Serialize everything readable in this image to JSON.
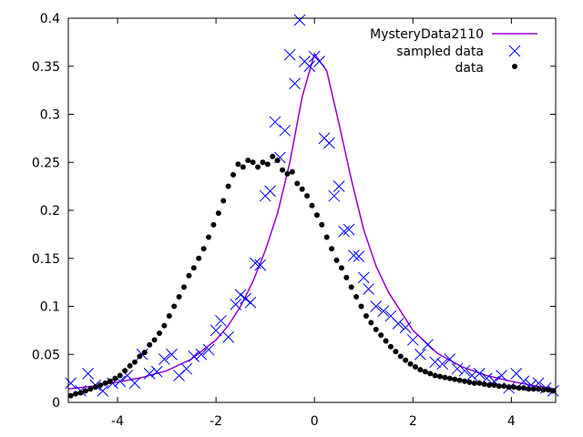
{
  "chart_data": {
    "type": "scatter",
    "xlim": [
      -5,
      4.9
    ],
    "ylim": [
      0,
      0.4
    ],
    "xticks": [
      -4,
      -2,
      0,
      2,
      4
    ],
    "yticks": [
      0,
      0.05,
      0.1,
      0.15,
      0.2,
      0.25,
      0.3,
      0.35,
      0.4
    ],
    "xtick_labels": [
      "-4",
      "-2",
      "0",
      "2",
      "4"
    ],
    "ytick_labels": [
      "0",
      "0.05",
      "0.1",
      "0.15",
      "0.2",
      "0.25",
      "0.3",
      "0.35",
      "0.4"
    ],
    "grid": false,
    "legend_position": "top-right",
    "series": [
      {
        "name": "MysteryData2110",
        "style": "line",
        "color": "#9400d3",
        "x": [
          -5,
          -4.5,
          -4,
          -3.5,
          -3,
          -2.5,
          -2,
          -1.75,
          -1.5,
          -1.25,
          -1,
          -0.75,
          -0.5,
          -0.25,
          0,
          0.25,
          0.5,
          0.75,
          1,
          1.25,
          1.5,
          2,
          2.5,
          3,
          3.5,
          4,
          4.5,
          4.9
        ],
        "y": [
          0.014,
          0.017,
          0.021,
          0.026,
          0.033,
          0.045,
          0.065,
          0.08,
          0.1,
          0.126,
          0.158,
          0.197,
          0.25,
          0.318,
          0.363,
          0.345,
          0.29,
          0.232,
          0.18,
          0.142,
          0.115,
          0.075,
          0.051,
          0.037,
          0.028,
          0.022,
          0.017,
          0.014
        ]
      },
      {
        "name": "sampled data",
        "style": "cross",
        "color": "#0000ff",
        "x": [
          -4.95,
          -4.75,
          -4.6,
          -4.45,
          -4.3,
          -4.1,
          -3.95,
          -3.8,
          -3.65,
          -3.5,
          -3.35,
          -3.2,
          -3.05,
          -2.9,
          -2.75,
          -2.6,
          -2.45,
          -2.3,
          -2.15,
          -2.0,
          -1.9,
          -1.75,
          -1.6,
          -1.5,
          -1.4,
          -1.3,
          -1.2,
          -1.1,
          -1.0,
          -0.9,
          -0.8,
          -0.7,
          -0.6,
          -0.5,
          -0.4,
          -0.3,
          -0.2,
          -0.1,
          0.0,
          0.1,
          0.2,
          0.3,
          0.4,
          0.5,
          0.6,
          0.7,
          0.8,
          0.9,
          1.0,
          1.1,
          1.25,
          1.4,
          1.55,
          1.7,
          1.85,
          2.0,
          2.15,
          2.3,
          2.45,
          2.6,
          2.75,
          2.9,
          3.05,
          3.2,
          3.35,
          3.5,
          3.65,
          3.8,
          3.95,
          4.1,
          4.25,
          4.4,
          4.55,
          4.7,
          4.85
        ],
        "y": [
          0.02,
          0.012,
          0.03,
          0.018,
          0.012,
          0.02,
          0.022,
          0.028,
          0.02,
          0.05,
          0.03,
          0.032,
          0.045,
          0.05,
          0.028,
          0.035,
          0.048,
          0.05,
          0.055,
          0.075,
          0.085,
          0.068,
          0.102,
          0.112,
          0.108,
          0.104,
          0.145,
          0.143,
          0.215,
          0.22,
          0.292,
          0.255,
          0.283,
          0.362,
          0.332,
          0.398,
          0.355,
          0.35,
          0.36,
          0.355,
          0.275,
          0.27,
          0.215,
          0.225,
          0.178,
          0.18,
          0.153,
          0.152,
          0.13,
          0.118,
          0.1,
          0.095,
          0.09,
          0.082,
          0.078,
          0.065,
          0.05,
          0.06,
          0.042,
          0.04,
          0.045,
          0.035,
          0.033,
          0.028,
          0.03,
          0.025,
          0.022,
          0.028,
          0.015,
          0.03,
          0.022,
          0.018,
          0.02,
          0.015,
          0.012
        ]
      },
      {
        "name": "data",
        "style": "dot",
        "color": "#000000",
        "x": [
          -4.95,
          -4.85,
          -4.75,
          -4.65,
          -4.55,
          -4.45,
          -4.35,
          -4.25,
          -4.15,
          -4.05,
          -3.95,
          -3.85,
          -3.75,
          -3.65,
          -3.55,
          -3.45,
          -3.35,
          -3.25,
          -3.15,
          -3.05,
          -2.95,
          -2.85,
          -2.75,
          -2.65,
          -2.55,
          -2.45,
          -2.35,
          -2.25,
          -2.15,
          -2.05,
          -1.95,
          -1.85,
          -1.75,
          -1.65,
          -1.55,
          -1.45,
          -1.35,
          -1.25,
          -1.15,
          -1.05,
          -0.95,
          -0.85,
          -0.75,
          -0.65,
          -0.55,
          -0.45,
          -0.35,
          -0.25,
          -0.15,
          -0.05,
          0.05,
          0.15,
          0.25,
          0.35,
          0.45,
          0.55,
          0.65,
          0.75,
          0.85,
          0.95,
          1.05,
          1.15,
          1.25,
          1.35,
          1.45,
          1.55,
          1.65,
          1.75,
          1.85,
          1.95,
          2.05,
          2.15,
          2.25,
          2.35,
          2.45,
          2.55,
          2.65,
          2.75,
          2.85,
          2.95,
          3.05,
          3.15,
          3.25,
          3.35,
          3.45,
          3.55,
          3.65,
          3.75,
          3.85,
          3.95,
          4.05,
          4.15,
          4.25,
          4.35,
          4.45,
          4.55,
          4.65,
          4.75,
          4.85
        ],
        "y": [
          0.007,
          0.009,
          0.01,
          0.012,
          0.014,
          0.016,
          0.018,
          0.02,
          0.022,
          0.025,
          0.028,
          0.033,
          0.038,
          0.042,
          0.048,
          0.052,
          0.06,
          0.065,
          0.072,
          0.08,
          0.09,
          0.1,
          0.11,
          0.12,
          0.132,
          0.14,
          0.15,
          0.16,
          0.172,
          0.185,
          0.197,
          0.21,
          0.225,
          0.237,
          0.248,
          0.245,
          0.252,
          0.25,
          0.245,
          0.25,
          0.248,
          0.256,
          0.252,
          0.242,
          0.238,
          0.24,
          0.228,
          0.222,
          0.215,
          0.205,
          0.195,
          0.185,
          0.172,
          0.16,
          0.148,
          0.14,
          0.13,
          0.12,
          0.11,
          0.1,
          0.09,
          0.083,
          0.076,
          0.07,
          0.064,
          0.058,
          0.053,
          0.048,
          0.044,
          0.04,
          0.037,
          0.034,
          0.032,
          0.03,
          0.028,
          0.027,
          0.026,
          0.025,
          0.024,
          0.023,
          0.022,
          0.021,
          0.02,
          0.02,
          0.019,
          0.018,
          0.018,
          0.017,
          0.017,
          0.016,
          0.016,
          0.015,
          0.015,
          0.014,
          0.014,
          0.014,
          0.013,
          0.013,
          0.012
        ]
      }
    ]
  }
}
